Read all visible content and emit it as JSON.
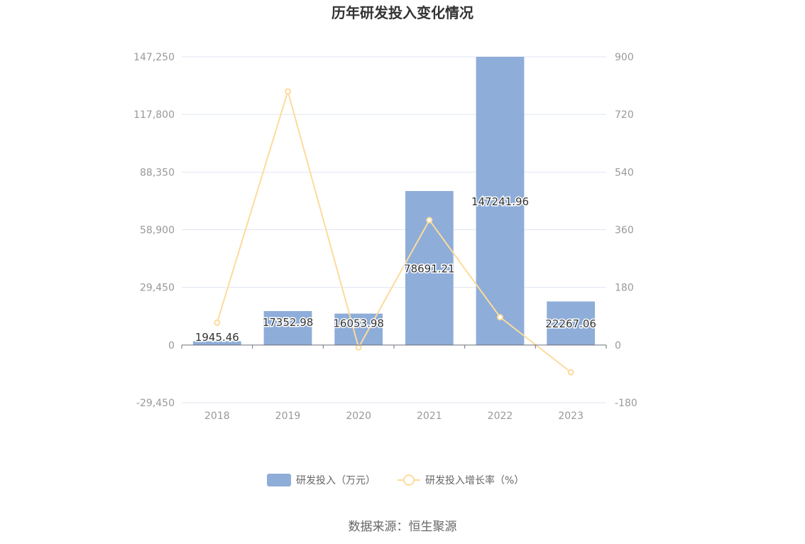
{
  "chart_data": {
    "type": "bar",
    "title": "历年研发投入变化情况",
    "categories": [
      "2018",
      "2019",
      "2020",
      "2021",
      "2022",
      "2023"
    ],
    "series": [
      {
        "name": "研发投入（万元）",
        "type": "bar",
        "axis": "left",
        "color": "#8eadd9",
        "values": [
          1945.46,
          17352.98,
          16053.98,
          78691.21,
          147241.96,
          22267.06
        ],
        "labels": [
          "1945.46",
          "17352.98",
          "16053.98",
          "78691.21",
          "147241.96",
          "22267.06"
        ]
      },
      {
        "name": "研发投入增长率（%）",
        "type": "line",
        "axis": "right",
        "color": "#fddb9c",
        "values": [
          70,
          792,
          -7.5,
          390,
          87,
          -85
        ]
      }
    ],
    "left_axis": {
      "ylim": [
        -29450,
        147250
      ],
      "ticks": [
        147250,
        117800,
        88350,
        58900,
        29450,
        0,
        -29450
      ],
      "tick_labels": [
        "147,250",
        "117,800",
        "88,350",
        "58,900",
        "29,450",
        "0",
        "-29,450"
      ]
    },
    "right_axis": {
      "ylim": [
        -180,
        900
      ],
      "ticks": [
        900,
        720,
        540,
        360,
        180,
        0,
        -180
      ],
      "tick_labels": [
        "900",
        "720",
        "540",
        "360",
        "180",
        "0",
        "-180"
      ]
    },
    "grid": true,
    "legend_position": "bottom-center"
  },
  "source_text": "数据来源：恒生聚源"
}
